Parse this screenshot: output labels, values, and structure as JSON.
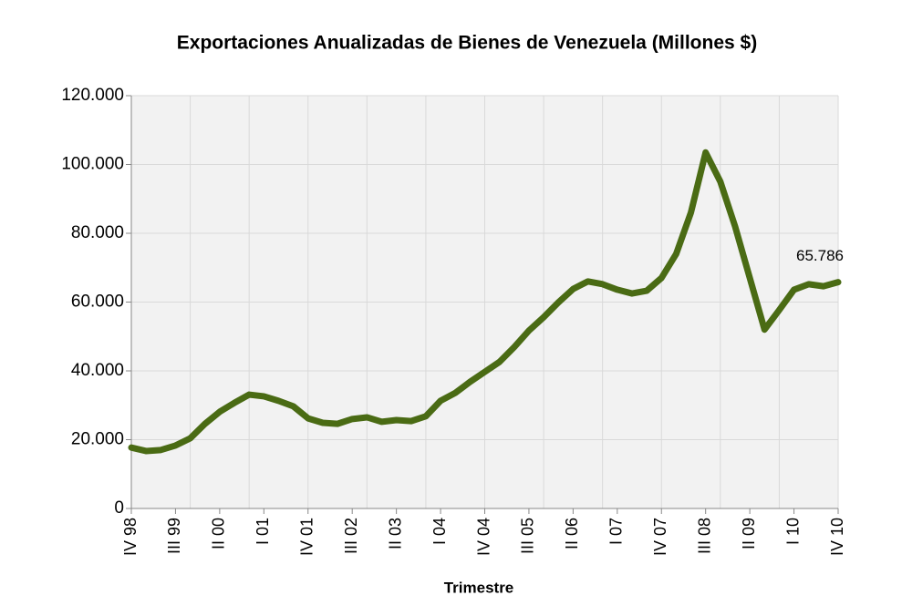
{
  "chart_data": {
    "type": "line",
    "title": "Exportaciones Anualizadas de Bienes de Venezuela (Millones $)",
    "x_label": "Trimestre",
    "categories": [
      "IV 98",
      null,
      null,
      "III 99",
      null,
      null,
      "II 00",
      null,
      null,
      "I 01",
      null,
      null,
      "IV 01",
      null,
      null,
      "III 02",
      null,
      null,
      "II 03",
      null,
      null,
      "I 04",
      null,
      null,
      "IV 04",
      null,
      null,
      "III 05",
      null,
      null,
      "II 06",
      null,
      null,
      "I 07",
      null,
      null,
      "IV 07",
      null,
      null,
      "III 08",
      null,
      null,
      "II 09",
      null,
      null,
      "I 10",
      null,
      null,
      "IV 10"
    ],
    "series": [
      {
        "name": "Exportaciones",
        "color": "#4a6b14",
        "values": [
          17700,
          16700,
          17000,
          18300,
          20400,
          24600,
          28100,
          30700,
          33100,
          32600,
          31300,
          29700,
          26200,
          24900,
          24600,
          26000,
          26500,
          25200,
          25700,
          25400,
          26800,
          31300,
          33600,
          36800,
          39700,
          42600,
          46900,
          51700,
          55600,
          59900,
          63800,
          66000,
          65200,
          63600,
          62500,
          63300,
          67000,
          74000,
          86000,
          103500,
          95000,
          82000,
          67000,
          52000,
          57700,
          63600,
          65200,
          64600,
          65786
        ],
        "value_labels": [
          null,
          null,
          null,
          null,
          null,
          null,
          null,
          null,
          null,
          null,
          null,
          null,
          null,
          null,
          null,
          null,
          null,
          null,
          null,
          null,
          null,
          null,
          null,
          null,
          null,
          null,
          null,
          null,
          null,
          null,
          null,
          null,
          null,
          null,
          null,
          null,
          null,
          null,
          null,
          null,
          null,
          null,
          null,
          null,
          null,
          null,
          null,
          null,
          "65.786"
        ]
      }
    ],
    "ylim": [
      0,
      120000
    ],
    "yticks": [
      0,
      {
        "value": 20000,
        "label": "20.000"
      },
      {
        "value": 40000,
        "label": "40.000"
      },
      {
        "value": 60000,
        "label": "60.000"
      },
      {
        "value": 80000,
        "label": "80.000"
      },
      {
        "value": 100000,
        "label": "100.000"
      },
      {
        "value": 120000,
        "label": "120.000"
      }
    ],
    "grid": true
  }
}
